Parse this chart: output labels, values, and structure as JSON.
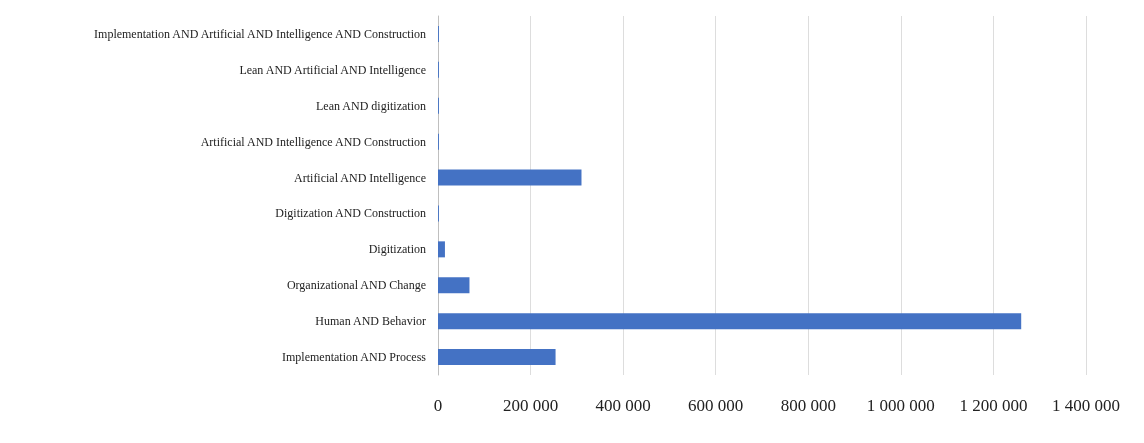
{
  "chart_data": {
    "type": "bar",
    "orientation": "horizontal",
    "categories": [
      "Implementation AND Artificial AND Intelligence AND Construction",
      "Lean AND Artificial AND Intelligence",
      "Lean AND digitization",
      "Artificial AND Intelligence AND Construction",
      "Artificial AND Intelligence",
      "Digitization AND Construction",
      "Digitization",
      "Organizational AND Change",
      "Human AND Behavior",
      "Implementation AND Process"
    ],
    "values": [
      2000,
      2000,
      2000,
      2000,
      310000,
      2000,
      15000,
      68000,
      1260000,
      254000
    ],
    "color": "#4472c4",
    "xlim": [
      0,
      1400000
    ],
    "xticks": [
      0,
      {
        "value": 200000,
        "label": "200 000"
      },
      {
        "value": 400000,
        "label": "400 000"
      },
      {
        "value": 600000,
        "label": "600 000"
      },
      {
        "value": 800000,
        "label": "800 000"
      },
      {
        "value": 1000000,
        "label": "1 000 000"
      },
      {
        "value": 1200000,
        "label": "1 200 000"
      },
      {
        "value": 1400000,
        "label": "1 400 000"
      }
    ],
    "grid": "x"
  }
}
